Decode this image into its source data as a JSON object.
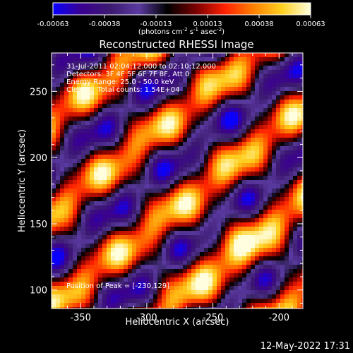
{
  "chart_data": {
    "type": "heatmap",
    "title": "Reconstructed RHESSI Image",
    "xlabel": "Heliocentric X (arcsec)",
    "ylabel": "Heliocentric Y (arcsec)",
    "xlim": [
      -372,
      -182
    ],
    "ylim": [
      86,
      279
    ],
    "x_ticks": [
      -350,
      -300,
      -250,
      -200
    ],
    "y_ticks": [
      100,
      150,
      200,
      250
    ],
    "colorbar": {
      "units_prefix": "(photons cm",
      "units_exp1": "-2",
      "units_mid1": " s",
      "units_exp2": "-1",
      "units_mid2": " asec",
      "units_exp3": "-2",
      "units_suffix": ")",
      "ticks": [
        "-0.00063",
        "-0.00038",
        "-0.00013",
        "0.00013",
        "0.00038",
        "0.00063"
      ],
      "range": [
        -0.00063,
        0.00063
      ],
      "colors": [
        "#0a00ff",
        "#3a0090",
        "#3c1a70",
        "#5a3aa0",
        "#000000",
        "#7a0000",
        "#ff2000",
        "#ff8000",
        "#ffd020",
        "#ffffe0"
      ]
    },
    "annotations": [
      "31-Jul-2011 02:04:12.000 to 02:10:12.000",
      "Detectors: 3F 4F 5F 6F 7F 8F, Att 0",
      "Energy Range: 25.0 - 50.0 keV",
      "Clean     Total counts: 1.54E+04"
    ],
    "peak_label": "Position of Peak = [-230,129]",
    "peak": [
      -230,
      129
    ],
    "stripe_angle_deg": 38,
    "stripe_period_arcsec": 55
  },
  "footer": {
    "timestamp": "12-May-2022 17:31"
  }
}
